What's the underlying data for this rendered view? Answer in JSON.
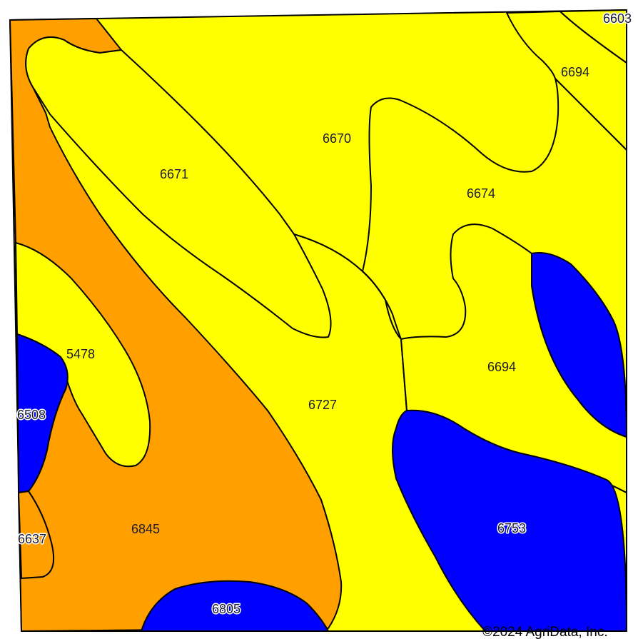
{
  "colors": {
    "yellow_class": "#ffff00",
    "orange_class": "#ff9f00",
    "blue_class": "#0000ff",
    "outline": "#000000",
    "background": "#ffffff"
  },
  "map_units": [
    {
      "id": "6603",
      "label": "6603",
      "class": "yellow"
    },
    {
      "id": "6694a",
      "label": "6694",
      "class": "yellow"
    },
    {
      "id": "6670",
      "label": "6670",
      "class": "yellow"
    },
    {
      "id": "6671",
      "label": "6671",
      "class": "yellow"
    },
    {
      "id": "6674",
      "label": "6674",
      "class": "yellow"
    },
    {
      "id": "5478",
      "label": "5478",
      "class": "yellow"
    },
    {
      "id": "6694b",
      "label": "6694",
      "class": "yellow"
    },
    {
      "id": "6727",
      "label": "6727",
      "class": "yellow"
    },
    {
      "id": "6508",
      "label": "6508",
      "class": "blue"
    },
    {
      "id": "6753",
      "label": "6753",
      "class": "blue"
    },
    {
      "id": "6637",
      "label": "6637",
      "class": "orange"
    },
    {
      "id": "6845",
      "label": "6845",
      "class": "orange"
    },
    {
      "id": "6805",
      "label": "6805",
      "class": "blue"
    }
  ],
  "copyright": "©2024 AgriData, Inc."
}
